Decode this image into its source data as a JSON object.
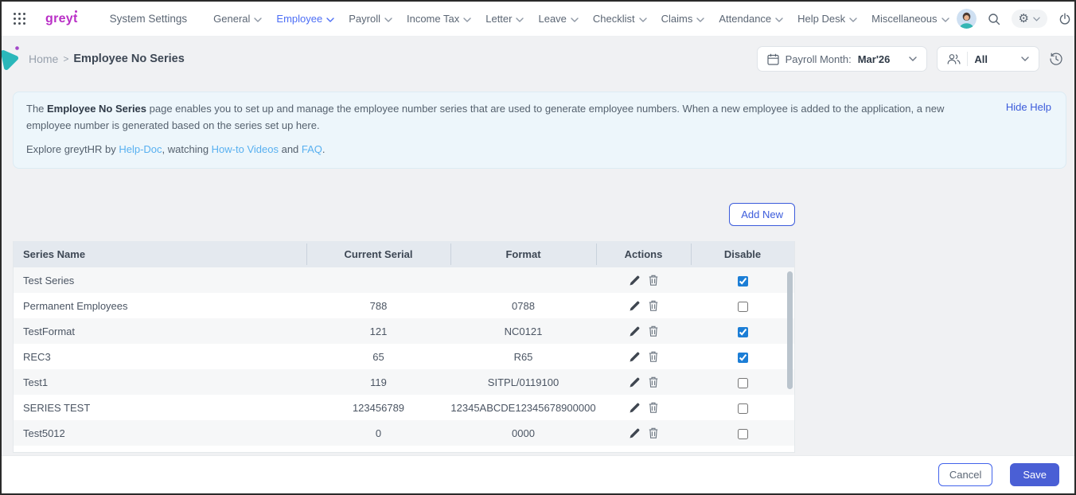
{
  "nav": {
    "logo_text": "greyt",
    "app_title": "System Settings",
    "menus": [
      {
        "label": "General",
        "slug": "general",
        "active": false
      },
      {
        "label": "Employee",
        "slug": "employee",
        "active": true
      },
      {
        "label": "Payroll",
        "slug": "payroll",
        "active": false
      },
      {
        "label": "Income Tax",
        "slug": "income-tax",
        "active": false
      },
      {
        "label": "Letter",
        "slug": "letter",
        "active": false
      },
      {
        "label": "Leave",
        "slug": "leave",
        "active": false
      },
      {
        "label": "Checklist",
        "slug": "checklist",
        "active": false
      },
      {
        "label": "Claims",
        "slug": "claims",
        "active": false
      },
      {
        "label": "Attendance",
        "slug": "attendance",
        "active": false
      },
      {
        "label": "Help Desk",
        "slug": "help-desk",
        "active": false
      },
      {
        "label": "Miscellaneous",
        "slug": "miscellaneous",
        "active": false
      }
    ]
  },
  "breadcrumb": {
    "home": "Home",
    "separator": ">",
    "current": "Employee No Series"
  },
  "filters": {
    "payroll_month_label": "Payroll Month:",
    "payroll_month_value": "Mar'26",
    "employee_filter_value": "All"
  },
  "help": {
    "p1_prefix": "The ",
    "p1_bold": "Employee No Series",
    "p1_rest": " page enables you to set up and manage the employee number series that are used to generate employee numbers. When a new employee is added to the application, a new employee number is generated based on the series set up here.",
    "p2_prefix": "Explore greytHR by ",
    "p2_link1": "Help-Doc",
    "p2_mid1": ", watching ",
    "p2_link2": "How-to Videos",
    "p2_mid2": " and ",
    "p2_link3": "FAQ",
    "p2_suffix": ".",
    "hide_help_label": "Hide Help"
  },
  "buttons": {
    "add_new": "Add New",
    "cancel": "Cancel",
    "save": "Save"
  },
  "table": {
    "columns": [
      "Series Name",
      "Current Serial",
      "Format",
      "Actions",
      "Disable"
    ],
    "rows": [
      {
        "name": "Test Series",
        "serial": "",
        "format": "",
        "disabled": true
      },
      {
        "name": "Permanent Employees",
        "serial": "788",
        "format": "0788",
        "disabled": false
      },
      {
        "name": "TestFormat",
        "serial": "121",
        "format": "NC0121",
        "disabled": true
      },
      {
        "name": "REC3",
        "serial": "65",
        "format": "R65",
        "disabled": true
      },
      {
        "name": "Test1",
        "serial": "119",
        "format": "SITPL/0119100",
        "disabled": false
      },
      {
        "name": "SERIES TEST",
        "serial": "123456789",
        "format": "12345ABCDE12345678900000",
        "disabled": false
      },
      {
        "name": "Test5012",
        "serial": "0",
        "format": "0000",
        "disabled": false
      }
    ]
  },
  "colors": {
    "accent_blue": "#4c6ef5",
    "save_button_blue": "#4a5fd5",
    "checkbox_checked_blue": "#1c7ed6",
    "logo_magenta": "#b92fc6",
    "help_link_blue": "#58b0f0"
  }
}
